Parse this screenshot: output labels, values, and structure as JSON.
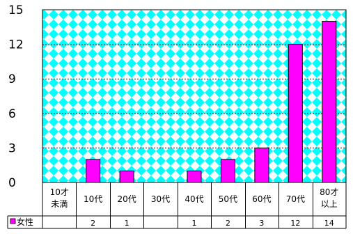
{
  "colors": {
    "plot_bg_diamond": "#00ffff",
    "plot_bg_base": "#ffffff",
    "bar_fill": "#ff00ff",
    "bar_stroke": "#000000",
    "gridline": "#000000"
  },
  "chart_data": {
    "type": "bar",
    "ylim": [
      0,
      15
    ],
    "yticks": [
      0,
      3,
      6,
      9,
      12,
      15
    ],
    "grid": "horizontal dotted",
    "categories": [
      [
        "10才",
        "未満"
      ],
      [
        "10代"
      ],
      [
        "20代"
      ],
      [
        "30代"
      ],
      [
        "40代"
      ],
      [
        "50代"
      ],
      [
        "60代"
      ],
      [
        "70代"
      ],
      [
        "80才",
        "以上"
      ]
    ],
    "series": [
      {
        "name": "女性",
        "values": [
          0,
          2,
          1,
          0,
          1,
          2,
          3,
          12,
          14
        ],
        "table_labels": [
          "",
          "2",
          "1",
          "",
          "1",
          "2",
          "3",
          "12",
          "14"
        ]
      }
    ],
    "legend": "data-table-left"
  }
}
